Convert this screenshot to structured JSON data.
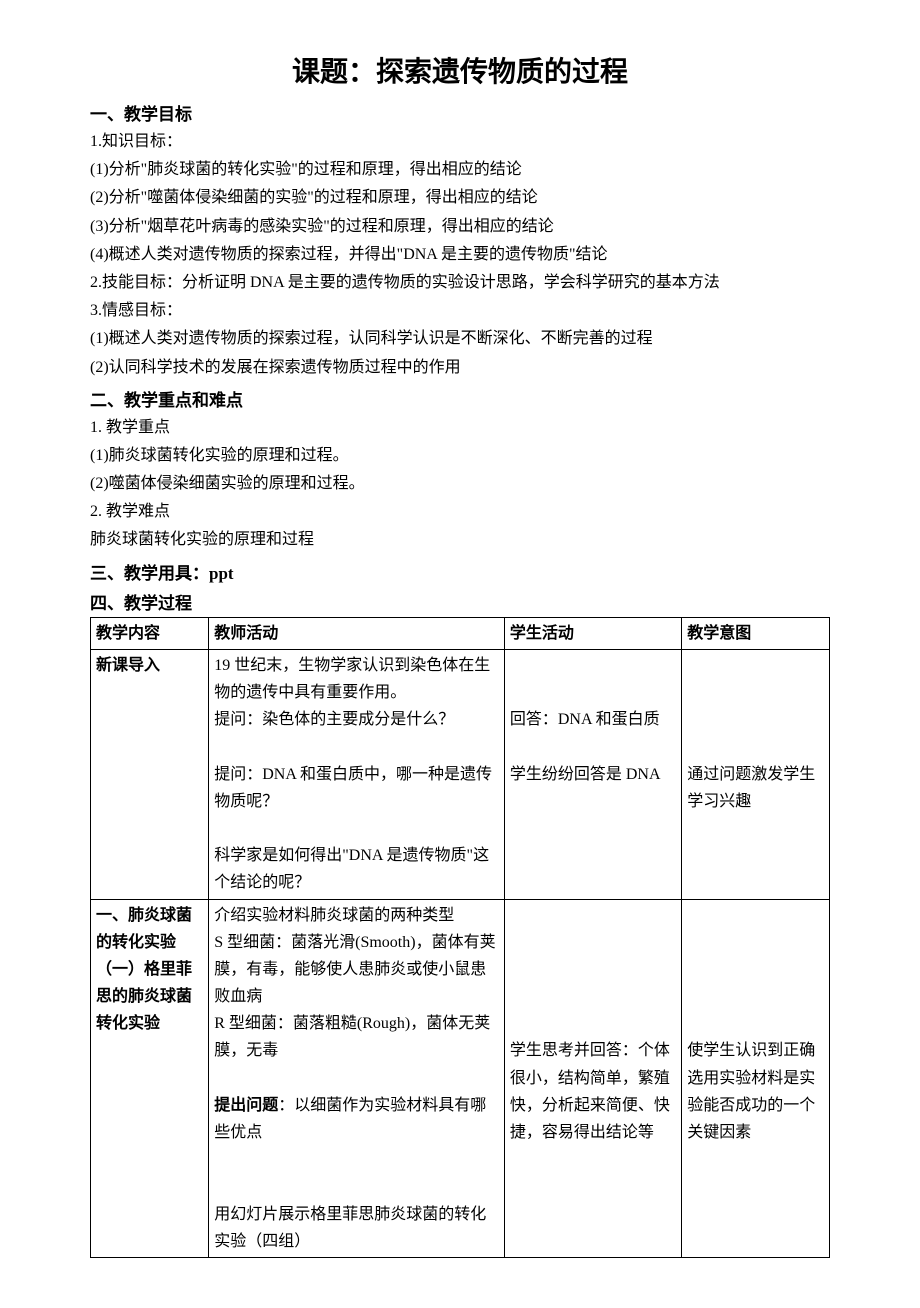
{
  "title": "课题：探索遗传物质的过程",
  "sec1": {
    "header": "一、教学目标",
    "lines": [
      "1.知识目标：",
      " (1)分析\"肺炎球菌的转化实验\"的过程和原理，得出相应的结论",
      " (2)分析\"噬菌体侵染细菌的实验\"的过程和原理，得出相应的结论",
      " (3)分析\"烟草花叶病毒的感染实验\"的过程和原理，得出相应的结论",
      " (4)概述人类对遗传物质的探索过程，并得出\"DNA 是主要的遗传物质\"结论",
      "2.技能目标：分析证明 DNA 是主要的遗传物质的实验设计思路，学会科学研究的基本方法",
      "3.情感目标：",
      "(1)概述人类对遗传物质的探索过程，认同科学认识是不断深化、不断完善的过程",
      "(2)认同科学技术的发展在探索遗传物质过程中的作用"
    ]
  },
  "sec2": {
    "header": "二、教学重点和难点",
    "lines": [
      "1. 教学重点",
      "(1)肺炎球菌转化实验的原理和过程。",
      "(2)噬菌体侵染细菌实验的原理和过程。",
      "2. 教学难点",
      "肺炎球菌转化实验的原理和过程"
    ]
  },
  "sec3": {
    "header": "三、教学用具：ppt"
  },
  "sec4": {
    "header": "四、教学过程"
  },
  "table": {
    "headers": [
      "教学内容",
      "教师活动",
      "学生活动",
      "教学意图"
    ],
    "row1": {
      "col1": "新课导入",
      "col2_p1": "19 世纪末，生物学家认识到染色体在生物的遗传中具有重要作用。",
      "col2_p2": "提问：染色体的主要成分是什么？",
      "col2_p3": "提问：DNA 和蛋白质中，哪一种是遗传物质呢？",
      "col2_p4": "科学家是如何得出\"DNA 是遗传物质\"这个结论的呢？",
      "col3_p1": "回答：DNA 和蛋白质",
      "col3_p2": "学生纷纷回答是 DNA",
      "col4_p1": "通过问题激发学生学习兴趣"
    },
    "row2": {
      "col1_l1": "一、肺炎球菌的转化实验",
      "col1_l2": "（一）格里菲思的肺炎球菌转化实验",
      "col2_p1": "介绍实验材料肺炎球菌的两种类型",
      "col2_p2": "S 型细菌：菌落光滑(Smooth)，菌体有荚膜，有毒，能够使人患肺炎或使小鼠患败血病",
      "col2_p3": "R 型细菌：菌落粗糙(Rough)，菌体无荚膜，无毒",
      "col2_p4a": "提出问题",
      "col2_p4b": "：以细菌作为实验材料具有哪些优点",
      "col2_p5": "用幻灯片展示格里菲思肺炎球菌的转化实验（四组）",
      "col3_p1": "学生思考并回答：个体很小，结构简单，繁殖快，分析起来简便、快捷，容易得出结论等",
      "col4_p1": "使学生认识到正确选用实验材料是实验能否成功的一个关键因素"
    }
  }
}
